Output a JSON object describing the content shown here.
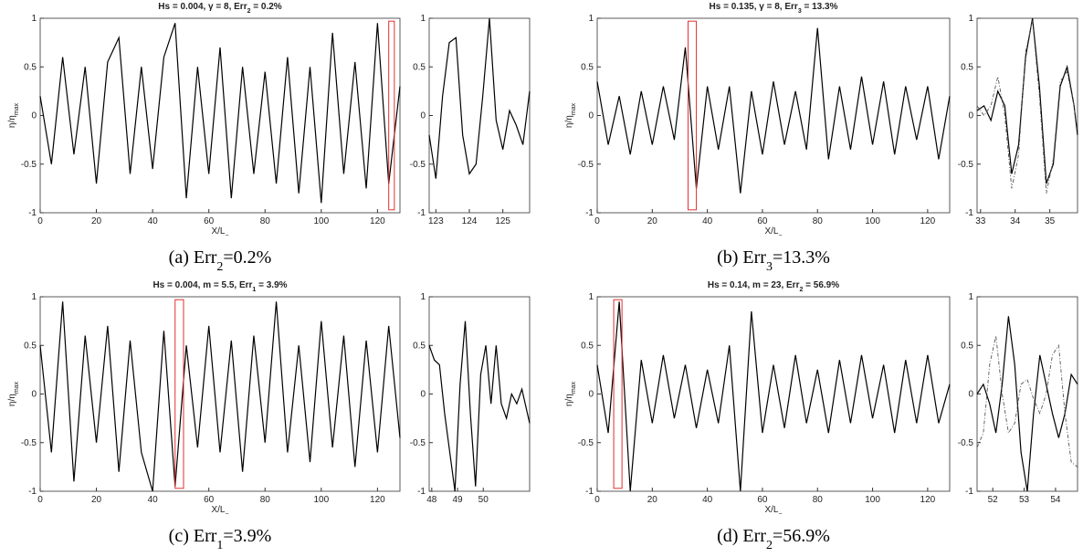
{
  "chart_data": [
    {
      "type": "line",
      "title": "Hs = 0.004, γ = 8, Err",
      "title_sub": "2",
      "title_end": " = 0.2%",
      "ylabel": "η/η",
      "ylabel_sub": "max",
      "xlabel": "X/L",
      "xlabel_sub": "−",
      "caption": "(a) Err",
      "caption_sub": "2",
      "caption_end": "=0.2%",
      "x": [
        0,
        4,
        8,
        12,
        16,
        20,
        24,
        28,
        32,
        36,
        40,
        44,
        48,
        52,
        56,
        60,
        64,
        68,
        72,
        76,
        80,
        84,
        88,
        92,
        96,
        100,
        104,
        108,
        112,
        116,
        120,
        124,
        128
      ],
      "series": [
        {
          "color": "#000000",
          "style": "solid",
          "values": [
            0.2,
            -0.5,
            0.6,
            -0.4,
            0.5,
            -0.7,
            0.55,
            0.8,
            -0.6,
            0.5,
            -0.55,
            0.6,
            0.95,
            -0.85,
            0.5,
            -0.6,
            0.7,
            -0.85,
            0.5,
            -0.6,
            0.45,
            -0.7,
            0.6,
            -0.8,
            0.5,
            -0.9,
            0.85,
            -0.6,
            0.55,
            -0.75,
            0.95,
            -0.7,
            0.3
          ]
        }
      ],
      "highlight": {
        "x": [
          124,
          126
        ],
        "y": [
          -0.97,
          0.97
        ],
        "color": "#e03030"
      },
      "xlim": [
        0,
        128
      ],
      "ylim": [
        -1,
        1
      ],
      "xticks": [
        0,
        20,
        40,
        60,
        80,
        100,
        120
      ],
      "yticks": [
        -1,
        -0.5,
        0,
        0.5,
        1
      ]
    },
    {
      "type": "line",
      "x": [
        122.8,
        123.0,
        123.2,
        123.4,
        123.6,
        123.8,
        124.0,
        124.2,
        124.4,
        124.6,
        124.8,
        125.0,
        125.2,
        125.4,
        125.6,
        125.8
      ],
      "series": [
        {
          "color": "#000000",
          "style": "solid",
          "values": [
            -0.2,
            -0.65,
            0.2,
            0.75,
            0.8,
            -0.2,
            -0.6,
            -0.5,
            0.2,
            1.0,
            -0.05,
            -0.35,
            0.05,
            -0.1,
            -0.3,
            0.25
          ]
        }
      ],
      "xlim": [
        122.8,
        125.8
      ],
      "ylim": [
        -1,
        1
      ],
      "xticks": [
        123,
        124,
        125
      ],
      "yticks": [
        -1,
        -0.5,
        0,
        0.5,
        1
      ]
    },
    {
      "type": "line",
      "title": "Hs = 0.135, γ = 8, Err",
      "title_sub": "3",
      "title_end": " = 13.3%",
      "ylabel": "η/η",
      "ylabel_sub": "max",
      "xlabel": "X/L",
      "xlabel_sub": "−",
      "caption": "(b) Err",
      "caption_sub": "3",
      "caption_end": "=13.3%",
      "x": [
        0,
        4,
        8,
        12,
        16,
        20,
        24,
        28,
        32,
        36,
        40,
        44,
        48,
        52,
        56,
        60,
        64,
        68,
        72,
        76,
        80,
        84,
        88,
        92,
        96,
        100,
        104,
        108,
        112,
        116,
        120,
        124,
        128
      ],
      "series": [
        {
          "color": "#000000",
          "style": "solid",
          "values": [
            0.35,
            -0.3,
            0.2,
            -0.4,
            0.25,
            -0.3,
            0.3,
            -0.25,
            0.7,
            -0.75,
            0.3,
            -0.35,
            0.3,
            -0.8,
            0.25,
            -0.4,
            0.35,
            -0.3,
            0.25,
            -0.35,
            0.9,
            -0.45,
            0.3,
            -0.35,
            0.4,
            -0.3,
            0.35,
            -0.4,
            0.3,
            -0.25,
            0.3,
            -0.45,
            0.2
          ]
        }
      ],
      "highlight": {
        "x": [
          33,
          36
        ],
        "y": [
          -0.97,
          0.97
        ],
        "color": "#e03030"
      },
      "xlim": [
        0,
        128
      ],
      "ylim": [
        -1,
        1
      ],
      "xticks": [
        0,
        20,
        40,
        60,
        80,
        100,
        120
      ],
      "yticks": [
        -1,
        -0.5,
        0,
        0.5,
        1
      ]
    },
    {
      "type": "line",
      "x": [
        32.9,
        33.1,
        33.3,
        33.5,
        33.7,
        33.9,
        34.1,
        34.3,
        34.5,
        34.7,
        34.9,
        35.1,
        35.3,
        35.5,
        35.7,
        35.8
      ],
      "series": [
        {
          "color": "#000000",
          "style": "solid",
          "values": [
            0.05,
            0.1,
            -0.05,
            0.25,
            0.1,
            -0.6,
            -0.3,
            0.6,
            1.0,
            0.3,
            -0.7,
            -0.5,
            0.3,
            0.5,
            0.1,
            -0.2
          ]
        },
        {
          "color": "#555555",
          "style": "dashed",
          "values": [
            0.1,
            0.0,
            0.1,
            0.4,
            0.0,
            -0.75,
            -0.4,
            0.65,
            0.98,
            0.2,
            -0.8,
            -0.45,
            0.35,
            0.45,
            0.1,
            -0.15
          ]
        }
      ],
      "xlim": [
        32.9,
        35.8
      ],
      "ylim": [
        -1,
        1
      ],
      "xticks": [
        33,
        34,
        35
      ],
      "yticks": [
        -1,
        -0.5,
        0,
        0.5,
        1
      ]
    },
    {
      "type": "line",
      "title": "Hs = 0.004, m = 5.5, Err",
      "title_sub": "1",
      "title_end": " = 3.9%",
      "ylabel": "η/η",
      "ylabel_sub": "max",
      "xlabel": "X/L",
      "xlabel_sub": "−",
      "caption": "(c) Err",
      "caption_sub": "1",
      "caption_end": "=3.9%",
      "x": [
        0,
        4,
        8,
        12,
        16,
        20,
        24,
        28,
        32,
        36,
        40,
        44,
        48,
        52,
        56,
        60,
        64,
        68,
        72,
        76,
        80,
        84,
        88,
        92,
        96,
        100,
        104,
        108,
        112,
        116,
        120,
        124,
        128
      ],
      "series": [
        {
          "color": "#000000",
          "style": "solid",
          "values": [
            0.5,
            -0.6,
            0.95,
            -0.9,
            0.6,
            -0.5,
            0.7,
            -0.8,
            0.55,
            -0.6,
            -1.0,
            0.65,
            -0.95,
            0.5,
            -0.55,
            0.7,
            -0.6,
            0.55,
            -0.8,
            0.6,
            -0.5,
            0.95,
            -0.6,
            0.5,
            -0.7,
            0.75,
            -0.55,
            0.6,
            -0.75,
            0.55,
            -0.6,
            0.7,
            -0.45
          ]
        }
      ],
      "highlight": {
        "x": [
          48,
          51
        ],
        "y": [
          -0.97,
          0.97
        ],
        "color": "#e03030"
      },
      "xlim": [
        0,
        128
      ],
      "ylim": [
        -1,
        1
      ],
      "xticks": [
        0,
        20,
        40,
        60,
        80,
        100,
        120
      ],
      "yticks": [
        -1,
        -0.5,
        0,
        0.5,
        1
      ]
    },
    {
      "type": "line",
      "x": [
        47.9,
        48.1,
        48.3,
        48.5,
        48.7,
        48.9,
        49.1,
        49.3,
        49.5,
        49.7,
        49.9,
        50.1,
        50.3,
        50.5,
        50.7,
        50.9,
        51.1,
        51.3,
        51.5,
        51.8
      ],
      "series": [
        {
          "color": "#000000",
          "style": "solid",
          "values": [
            0.5,
            0.35,
            0.3,
            -0.2,
            -0.6,
            -1.0,
            0.1,
            0.75,
            -0.2,
            -0.95,
            0.2,
            0.5,
            -0.1,
            0.5,
            -0.1,
            -0.25,
            0.0,
            -0.1,
            0.05,
            -0.3
          ]
        }
      ],
      "xlim": [
        47.9,
        51.8
      ],
      "ylim": [
        -1,
        1
      ],
      "xticks": [
        48,
        49,
        50
      ],
      "yticks": [
        -1,
        -0.5,
        0,
        0.5,
        1
      ]
    },
    {
      "type": "line",
      "title": "Hs = 0.14, m = 23, Err",
      "title_sub": "2",
      "title_end": " = 56.9%",
      "ylabel": "η/η",
      "ylabel_sub": "max",
      "xlabel": "X/L",
      "xlabel_sub": "−",
      "caption": "(d) Err",
      "caption_sub": "2",
      "caption_end": "=56.9%",
      "x": [
        0,
        4,
        8,
        12,
        16,
        20,
        24,
        28,
        32,
        36,
        40,
        44,
        48,
        52,
        56,
        60,
        64,
        68,
        72,
        76,
        80,
        84,
        88,
        92,
        96,
        100,
        104,
        108,
        112,
        116,
        120,
        124,
        128
      ],
      "series": [
        {
          "color": "#000000",
          "style": "solid",
          "values": [
            0.3,
            -0.4,
            0.95,
            -1.0,
            0.35,
            -0.3,
            0.4,
            -0.25,
            0.3,
            -0.35,
            0.25,
            -0.3,
            0.5,
            -1.0,
            0.85,
            -0.4,
            0.3,
            -0.35,
            0.4,
            -0.3,
            0.25,
            -0.4,
            0.35,
            -0.3,
            0.4,
            -0.25,
            0.3,
            -0.4,
            0.35,
            -0.3,
            0.4,
            -0.3,
            0.1
          ]
        }
      ],
      "highlight": {
        "x": [
          6,
          9
        ],
        "y": [
          -0.97,
          0.97
        ],
        "color": "#e03030"
      },
      "xlim": [
        0,
        128
      ],
      "ylim": [
        -1,
        1
      ],
      "xticks": [
        0,
        20,
        40,
        60,
        80,
        100,
        120
      ],
      "yticks": [
        -1,
        -0.5,
        0,
        0.5,
        1
      ]
    },
    {
      "type": "line",
      "x": [
        51.5,
        51.7,
        51.9,
        52.1,
        52.3,
        52.5,
        52.7,
        52.9,
        53.1,
        53.3,
        53.5,
        53.7,
        53.9,
        54.1,
        54.3,
        54.5,
        54.7
      ],
      "series": [
        {
          "color": "#000000",
          "style": "solid",
          "values": [
            0.0,
            0.1,
            -0.1,
            -0.4,
            0.1,
            0.8,
            0.3,
            -0.6,
            -1.0,
            -0.2,
            0.4,
            0.1,
            -0.2,
            -0.45,
            -0.2,
            0.2,
            0.1
          ]
        },
        {
          "color": "#555555",
          "style": "dashed",
          "values": [
            -0.55,
            -0.4,
            0.3,
            0.6,
            0.0,
            -0.4,
            -0.3,
            0.1,
            0.15,
            -0.05,
            -0.2,
            0.0,
            0.4,
            0.5,
            -0.2,
            -0.7,
            -0.75
          ]
        }
      ],
      "xlim": [
        51.5,
        54.7
      ],
      "ylim": [
        -1,
        1
      ],
      "xticks": [
        52,
        53,
        54
      ],
      "yticks": [
        -1,
        -0.5,
        0,
        0.5,
        1
      ]
    }
  ]
}
